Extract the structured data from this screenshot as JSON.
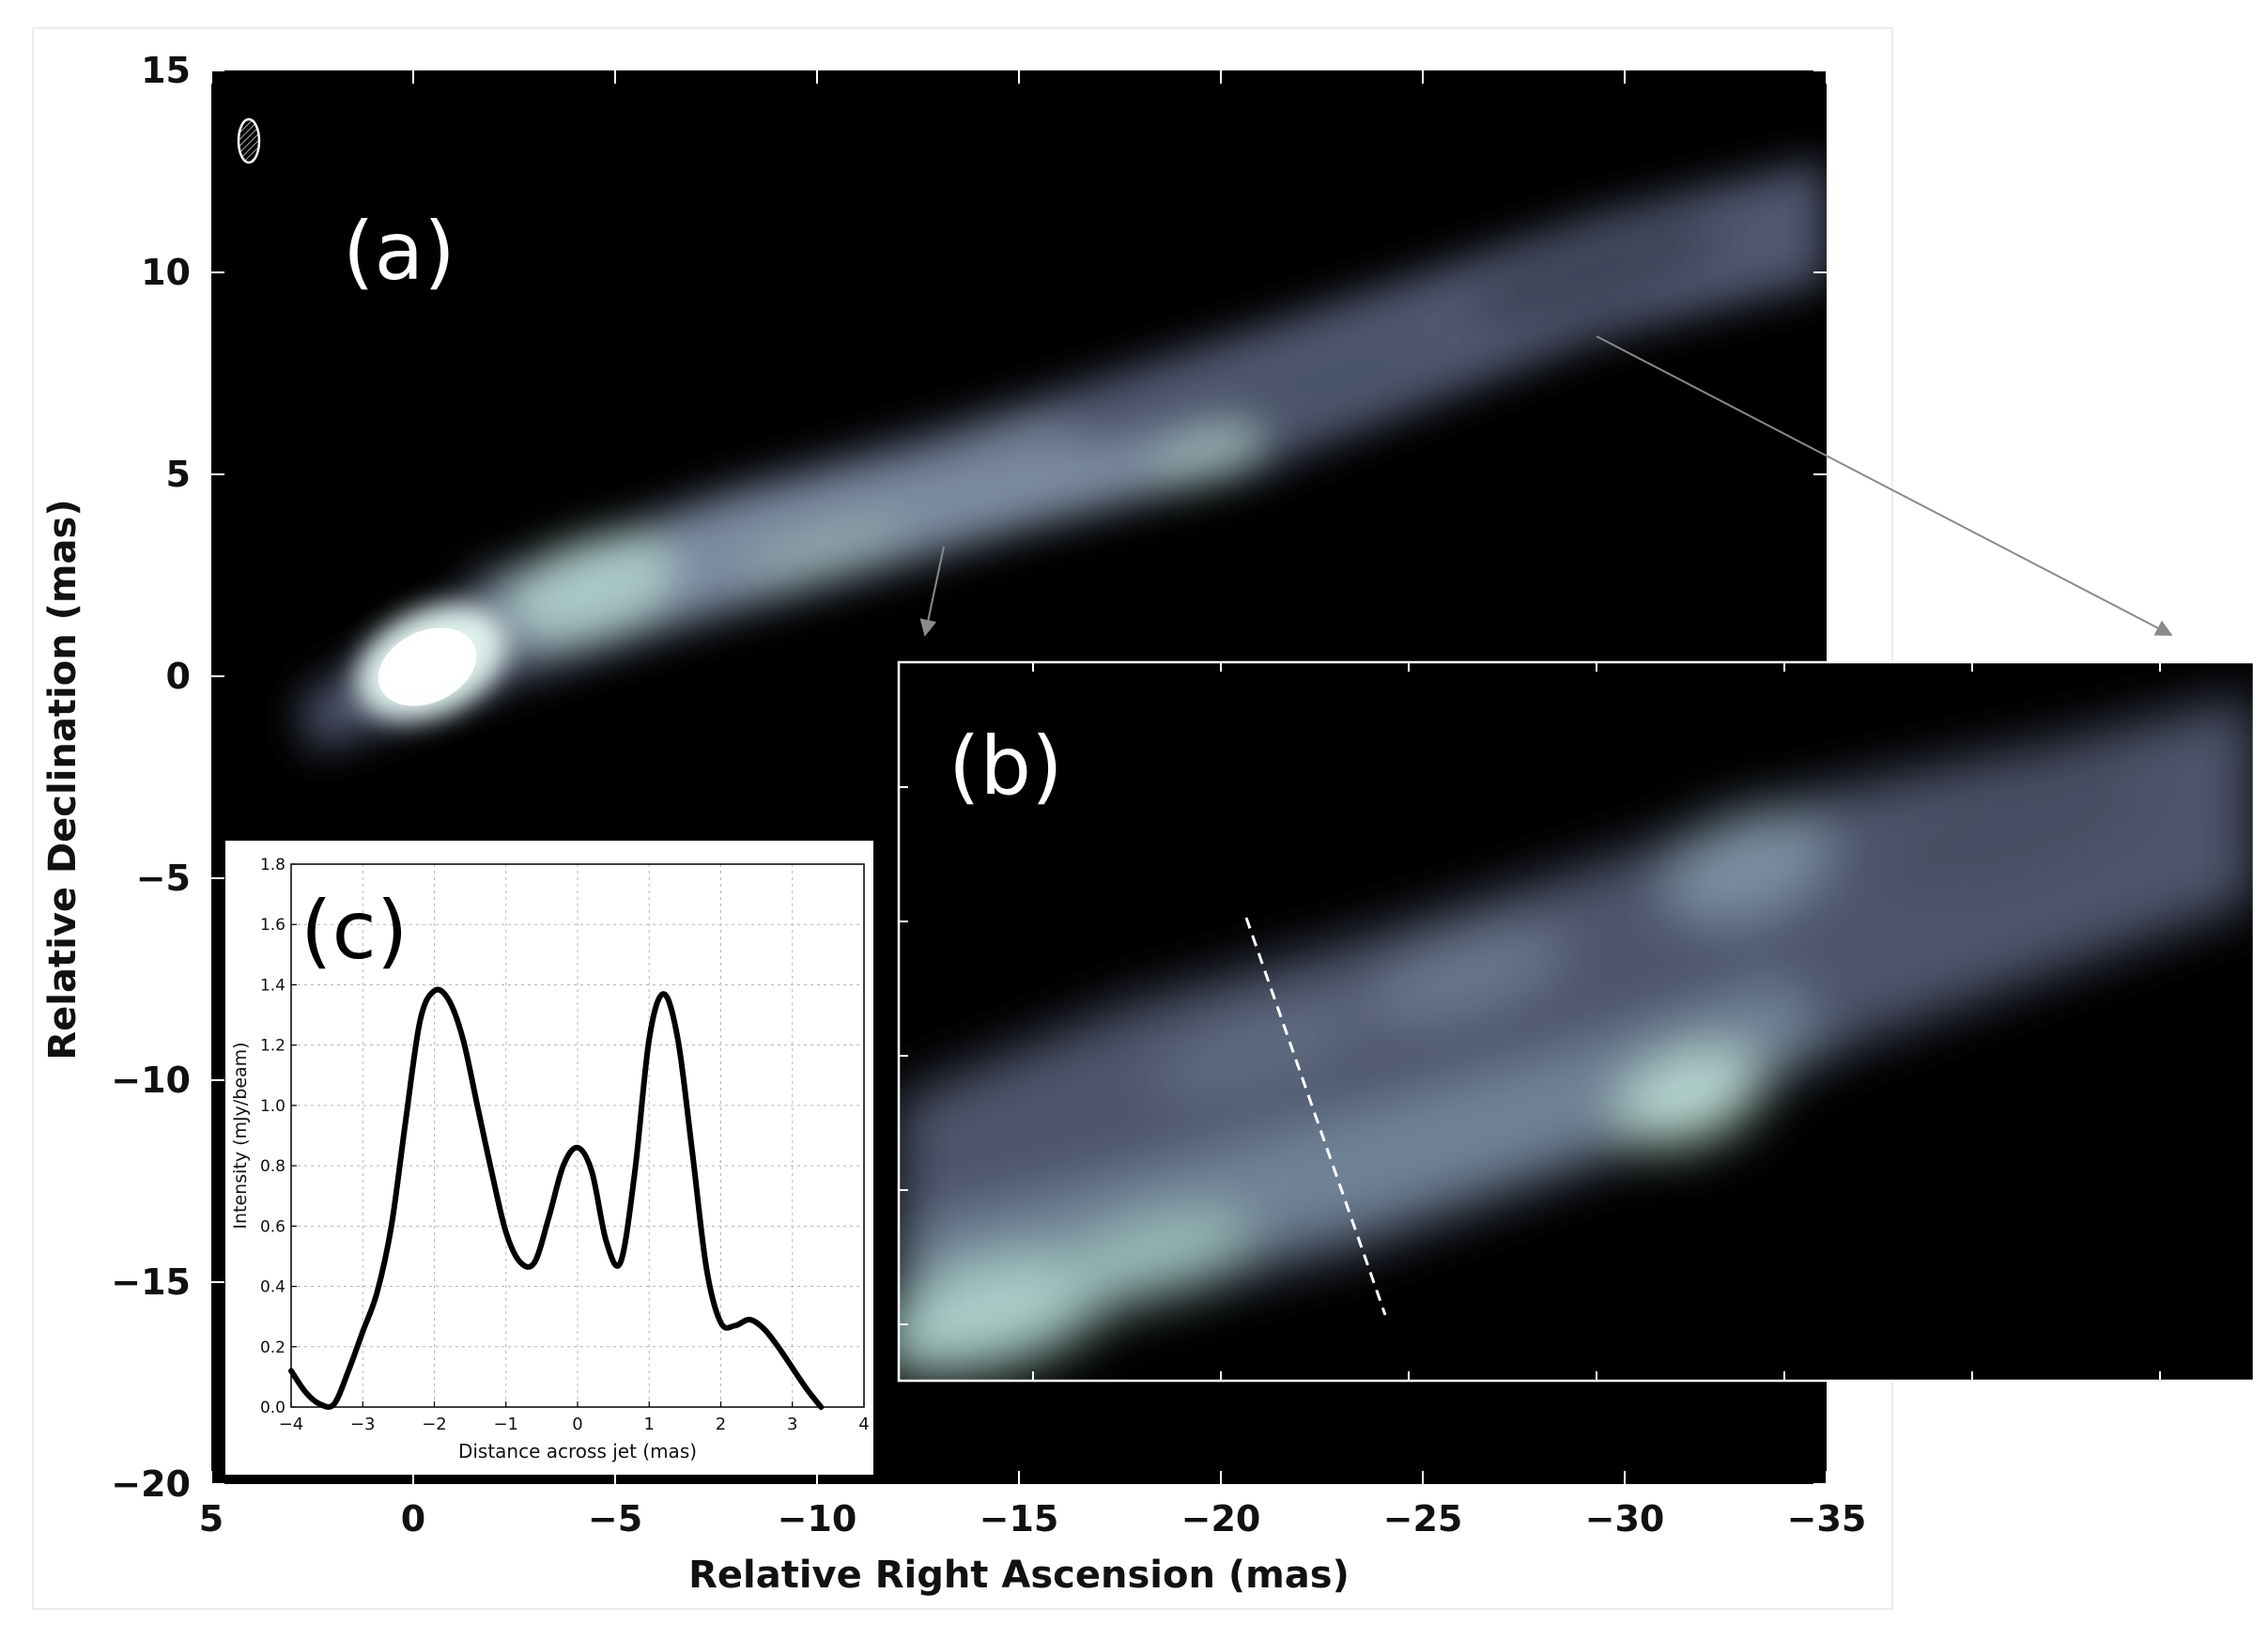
{
  "chart_data": [
    {
      "panel": "a",
      "type": "heatmap",
      "label": "(a)",
      "xlabel": "Relative Right Ascension (mas)",
      "ylabel": "Relative Declination (mas)",
      "xlim": [
        5,
        -35
      ],
      "ylim": [
        -20,
        15
      ],
      "xticks": [
        5,
        0,
        -5,
        -10,
        -15,
        -20,
        -25,
        -30,
        -35
      ],
      "xtick_labels": [
        "5",
        "0",
        "−5",
        "−10",
        "−15",
        "−20",
        "−25",
        "−30",
        "−35"
      ],
      "yticks": [
        15,
        10,
        5,
        0,
        -5,
        -10,
        -15,
        -20
      ],
      "ytick_labels": [
        "15",
        "10",
        "5",
        "0",
        "−5",
        "−10",
        "−15",
        "−20"
      ],
      "colormap": "bone",
      "background_color": "#000000",
      "core_position": [
        0,
        0
      ]
    },
    {
      "panel": "b",
      "type": "heatmap",
      "label": "(b)",
      "description_color": "#aab5c9"
    },
    {
      "panel": "c",
      "type": "line",
      "label": "(c)",
      "xlabel": "Distance across jet (mas)",
      "ylabel": "Intensity (mJy/beam)",
      "xlim": [
        -4,
        4
      ],
      "ylim": [
        0.0,
        1.8
      ],
      "xticks": [
        -4,
        -3,
        -2,
        -1,
        0,
        1,
        2,
        3,
        4
      ],
      "xtick_labels": [
        "−4",
        "−3",
        "−2",
        "−1",
        "0",
        "1",
        "2",
        "3",
        "4"
      ],
      "yticks": [
        0.0,
        0.2,
        0.4,
        0.6,
        0.8,
        1.0,
        1.2,
        1.4,
        1.6,
        1.8
      ],
      "ytick_labels": [
        "0.0",
        "0.2",
        "0.4",
        "0.6",
        "0.8",
        "1.0",
        "1.2",
        "1.4",
        "1.6",
        "1.8"
      ],
      "grid": true,
      "series": [
        {
          "x": [
            -4.0,
            -3.8,
            -3.6,
            -3.4,
            -3.2,
            -3.0,
            -2.8,
            -2.6,
            -2.4,
            -2.2,
            -2.0,
            -1.8,
            -1.6,
            -1.4,
            -1.2,
            -1.0,
            -0.8,
            -0.6,
            -0.4,
            -0.2,
            0.0,
            0.2,
            0.4,
            0.6,
            0.8,
            1.0,
            1.2,
            1.4,
            1.6,
            1.8,
            2.0,
            2.2,
            2.4,
            2.6,
            2.8,
            3.0,
            3.2,
            3.4
          ],
          "y": [
            0.12,
            0.05,
            0.01,
            0.01,
            0.12,
            0.25,
            0.38,
            0.6,
            0.95,
            1.28,
            1.38,
            1.35,
            1.22,
            1.0,
            0.78,
            0.58,
            0.48,
            0.48,
            0.63,
            0.8,
            0.86,
            0.78,
            0.55,
            0.48,
            0.78,
            1.22,
            1.37,
            1.22,
            0.85,
            0.46,
            0.28,
            0.27,
            0.29,
            0.26,
            0.2,
            0.13,
            0.06,
            0.0
          ]
        }
      ]
    }
  ]
}
